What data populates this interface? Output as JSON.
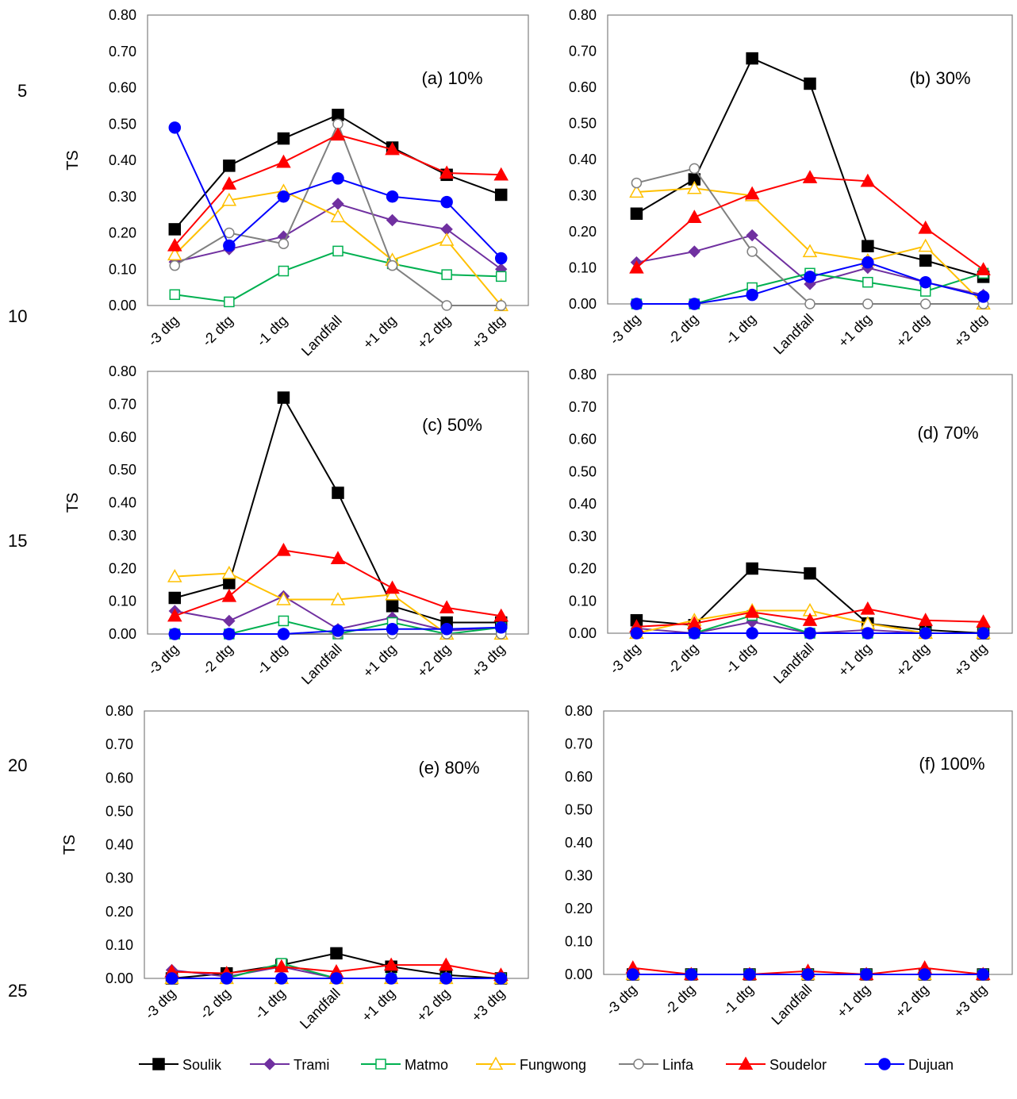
{
  "line_numbers": [
    "5",
    "10",
    "15",
    "20",
    "25"
  ],
  "legend_markers": {
    "Soulik": "square-filled",
    "Trami": "diamond-filled",
    "Matmo": "square-open",
    "Fungwong": "triangle-open",
    "Linfa": "circle-open",
    "Soudelor": "triangle-filled",
    "Dujuan": "circle-filled"
  },
  "colors": {
    "Soulik": "#000000",
    "Trami": "#7030a0",
    "Matmo": "#00b050",
    "Fungwong": "#ffc000",
    "Linfa": "#808080",
    "Soudelor": "#ff0000",
    "Dujuan": "#0000ff"
  },
  "chart_data": [
    {
      "type": "line",
      "title": "(a)  10%",
      "ylabel": "TS",
      "ylim": [
        0,
        0.8
      ],
      "yticks": [
        "0.00",
        "0.10",
        "0.20",
        "0.30",
        "0.40",
        "0.50",
        "0.60",
        "0.70",
        "0.80"
      ],
      "categories": [
        "-3 dtg",
        "-2 dtg",
        "-1 dtg",
        "Landfall",
        "+1 dtg",
        "+2 dtg",
        "+3 dtg"
      ],
      "series": [
        {
          "name": "Soulik",
          "values": [
            0.21,
            0.385,
            0.46,
            0.525,
            0.435,
            0.36,
            0.305
          ]
        },
        {
          "name": "Trami",
          "values": [
            0.12,
            0.155,
            0.19,
            0.28,
            0.235,
            0.21,
            0.1
          ]
        },
        {
          "name": "Matmo",
          "values": [
            0.03,
            0.01,
            0.095,
            0.15,
            0.115,
            0.085,
            0.08
          ]
        },
        {
          "name": "Fungwong",
          "values": [
            0.14,
            0.29,
            0.315,
            0.245,
            0.125,
            0.18,
            0.0
          ]
        },
        {
          "name": "Linfa",
          "values": [
            0.11,
            0.2,
            0.17,
            0.5,
            0.11,
            0.0,
            0.0
          ]
        },
        {
          "name": "Soudelor",
          "values": [
            0.165,
            0.335,
            0.395,
            0.47,
            0.43,
            0.365,
            0.36
          ]
        },
        {
          "name": "Dujuan",
          "values": [
            0.49,
            0.165,
            0.3,
            0.35,
            0.3,
            0.285,
            0.13
          ]
        }
      ]
    },
    {
      "type": "line",
      "title": "(b) 30%",
      "ylabel": "",
      "ylim": [
        0,
        0.8
      ],
      "yticks": [
        "0.00",
        "0.10",
        "0.20",
        "0.30",
        "0.40",
        "0.50",
        "0.60",
        "0.70",
        "0.80"
      ],
      "categories": [
        "-3 dtg",
        "-2 dtg",
        "-1 dtg",
        "Landfall",
        "+1 dtg",
        "+2 dtg",
        "+3 dtg"
      ],
      "series": [
        {
          "name": "Soulik",
          "values": [
            0.25,
            0.345,
            0.68,
            0.61,
            0.16,
            0.12,
            0.075
          ]
        },
        {
          "name": "Trami",
          "values": [
            0.115,
            0.145,
            0.19,
            0.055,
            0.1,
            0.06,
            0.025
          ]
        },
        {
          "name": "Matmo",
          "values": [
            0.0,
            0.0,
            0.045,
            0.085,
            0.06,
            0.035,
            0.085
          ]
        },
        {
          "name": "Fungwong",
          "values": [
            0.31,
            0.32,
            0.3,
            0.145,
            0.12,
            0.16,
            0.0
          ]
        },
        {
          "name": "Linfa",
          "values": [
            0.335,
            0.375,
            0.145,
            0.0,
            0.0,
            0.0,
            0.0
          ]
        },
        {
          "name": "Soudelor",
          "values": [
            0.1,
            0.24,
            0.305,
            0.35,
            0.34,
            0.21,
            0.095
          ]
        },
        {
          "name": "Dujuan",
          "values": [
            0.0,
            0.0,
            0.025,
            0.075,
            0.115,
            0.06,
            0.02
          ]
        }
      ]
    },
    {
      "type": "line",
      "title": "(c) 50%",
      "ylabel": "TS",
      "ylim": [
        0,
        0.8
      ],
      "yticks": [
        "0.00",
        "0.10",
        "0.20",
        "0.30",
        "0.40",
        "0.50",
        "0.60",
        "0.70",
        "0.80"
      ],
      "categories": [
        "-3 dtg",
        "-2 dtg",
        "-1 dtg",
        "Landfall",
        "+1 dtg",
        "+2 dtg",
        "+3 dtg"
      ],
      "series": [
        {
          "name": "Soulik",
          "values": [
            0.11,
            0.155,
            0.72,
            0.43,
            0.085,
            0.035,
            0.035
          ]
        },
        {
          "name": "Trami",
          "values": [
            0.07,
            0.04,
            0.115,
            0.015,
            0.05,
            0.01,
            0.02
          ]
        },
        {
          "name": "Matmo",
          "values": [
            0.0,
            0.0,
            0.04,
            0.0,
            0.035,
            0.0,
            0.02
          ]
        },
        {
          "name": "Fungwong",
          "values": [
            0.175,
            0.185,
            0.105,
            0.105,
            0.12,
            0.0,
            0.0
          ]
        },
        {
          "name": "Linfa",
          "values": [
            0.0,
            0.0,
            0.0,
            0.0,
            0.0,
            0.0,
            0.0
          ]
        },
        {
          "name": "Soudelor",
          "values": [
            0.055,
            0.115,
            0.255,
            0.23,
            0.14,
            0.08,
            0.055
          ]
        },
        {
          "name": "Dujuan",
          "values": [
            0.0,
            0.0,
            0.0,
            0.01,
            0.015,
            0.015,
            0.02
          ]
        }
      ]
    },
    {
      "type": "line",
      "title": "(d)  70%",
      "ylabel": "",
      "ylim": [
        0,
        0.8
      ],
      "yticks": [
        "0.00",
        "0.10",
        "0.20",
        "0.30",
        "0.40",
        "0.50",
        "0.60",
        "0.70",
        "0.80"
      ],
      "categories": [
        "-3 dtg",
        "-2 dtg",
        "-1 dtg",
        "Landfall",
        "+1 dtg",
        "+2 dtg",
        "+3 dtg"
      ],
      "series": [
        {
          "name": "Soulik",
          "values": [
            0.04,
            0.025,
            0.2,
            0.185,
            0.03,
            0.01,
            0.0
          ]
        },
        {
          "name": "Trami",
          "values": [
            0.015,
            0.0,
            0.035,
            0.0,
            0.01,
            0.0,
            0.0
          ]
        },
        {
          "name": "Matmo",
          "values": [
            0.0,
            0.0,
            0.055,
            0.0,
            0.0,
            0.0,
            0.0
          ]
        },
        {
          "name": "Fungwong",
          "values": [
            0.0,
            0.04,
            0.07,
            0.07,
            0.03,
            0.0,
            0.0
          ]
        },
        {
          "name": "Linfa",
          "values": [
            0.0,
            0.0,
            0.0,
            0.0,
            0.0,
            0.0,
            0.0
          ]
        },
        {
          "name": "Soudelor",
          "values": [
            0.02,
            0.03,
            0.065,
            0.04,
            0.075,
            0.04,
            0.035
          ]
        },
        {
          "name": "Dujuan",
          "values": [
            0.0,
            0.0,
            0.0,
            0.0,
            0.0,
            0.0,
            0.0
          ]
        }
      ]
    },
    {
      "type": "line",
      "title": "(e)  80%",
      "ylabel": "TS",
      "ylim": [
        0,
        0.8
      ],
      "yticks": [
        "0.00",
        "0.10",
        "0.20",
        "0.30",
        "0.40",
        "0.50",
        "0.60",
        "0.70",
        "0.80"
      ],
      "categories": [
        "-3 dtg",
        "-2 dtg",
        "-1 dtg",
        "Landfall",
        "+1 dtg",
        "+2 dtg",
        "+3 dtg"
      ],
      "series": [
        {
          "name": "Soulik",
          "values": [
            0.0,
            0.015,
            0.04,
            0.075,
            0.035,
            0.01,
            0.0
          ]
        },
        {
          "name": "Trami",
          "values": [
            0.025,
            0.005,
            0.035,
            0.0,
            0.0,
            0.0,
            0.0
          ]
        },
        {
          "name": "Matmo",
          "values": [
            0.0,
            0.0,
            0.045,
            0.0,
            0.0,
            0.0,
            0.0
          ]
        },
        {
          "name": "Fungwong",
          "values": [
            0.0,
            0.0,
            0.0,
            0.0,
            0.0,
            0.0,
            0.0
          ]
        },
        {
          "name": "Linfa",
          "values": [
            0.0,
            0.0,
            0.0,
            0.0,
            0.0,
            0.0,
            0.0
          ]
        },
        {
          "name": "Soudelor",
          "values": [
            0.02,
            0.015,
            0.035,
            0.02,
            0.04,
            0.04,
            0.01
          ]
        },
        {
          "name": "Dujuan",
          "values": [
            0.0,
            0.0,
            0.0,
            0.0,
            0.0,
            0.0,
            0.0
          ]
        }
      ]
    },
    {
      "type": "line",
      "title": "(f)   100%",
      "ylabel": "",
      "ylim": [
        0,
        0.8
      ],
      "yticks": [
        "0.00",
        "0.10",
        "0.20",
        "0.30",
        "0.40",
        "0.50",
        "0.60",
        "0.70",
        "0.80"
      ],
      "categories": [
        "-3 dtg",
        "-2 dtg",
        "-1 dtg",
        "Landfall",
        "+1 dtg",
        "+2 dtg",
        "+3 dtg"
      ],
      "series": [
        {
          "name": "Soulik",
          "values": [
            0.0,
            0.0,
            0.0,
            0.0,
            0.0,
            0.0,
            0.0
          ]
        },
        {
          "name": "Trami",
          "values": [
            0.0,
            0.0,
            0.0,
            0.0,
            0.0,
            0.0,
            0.0
          ]
        },
        {
          "name": "Matmo",
          "values": [
            0.0,
            0.0,
            0.0,
            0.0,
            0.0,
            0.0,
            0.0
          ]
        },
        {
          "name": "Fungwong",
          "values": [
            0.0,
            0.0,
            0.0,
            0.0,
            0.0,
            0.0,
            0.0
          ]
        },
        {
          "name": "Linfa",
          "values": [
            0.0,
            0.0,
            0.0,
            0.0,
            0.0,
            0.0,
            0.0
          ]
        },
        {
          "name": "Soudelor",
          "values": [
            0.02,
            0.0,
            0.0,
            0.01,
            0.0,
            0.02,
            0.0
          ]
        },
        {
          "name": "Dujuan",
          "values": [
            0.0,
            0.0,
            0.0,
            0.0,
            0.0,
            0.0,
            0.0
          ]
        }
      ]
    }
  ]
}
